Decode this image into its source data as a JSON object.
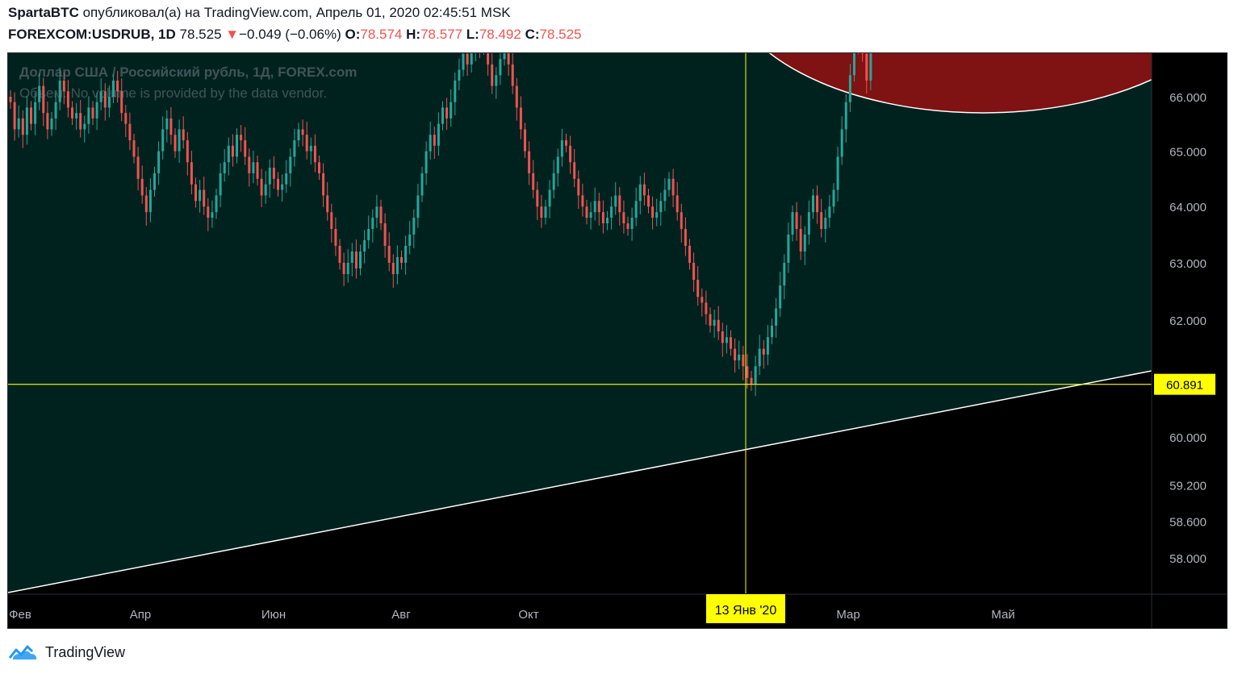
{
  "header": {
    "author": "SpartaBTC",
    "published_text": "опубликовал(а) на TradingView.com, Апрель 01, 2020 02:45:51 MSK",
    "symbol": "FOREXCOM:USDRUB, 1D",
    "last_price": "78.525",
    "change_arrow": "▼",
    "change": "−0.049 (−0.06%)",
    "open_label": "O:",
    "open": "78.574",
    "high_label": "H:",
    "high": "78.577",
    "low_label": "L:",
    "low": "78.492",
    "close_label": "C:",
    "close": "78.525"
  },
  "watermark": {
    "title": "Доллар США / Российский рубль, 1Д, FOREX.com",
    "volume_note": "Объем: No volume is provided by the data vendor."
  },
  "footer": {
    "brand": "TradingView"
  },
  "colors": {
    "up": "#26a69a",
    "down": "#ef5350",
    "zone_fill": "#00221f",
    "circle_fill": "#7f1212",
    "crosshair": "#ffff00",
    "label_bg": "#ffff00",
    "axis_text": "#b2b5be"
  },
  "chart_data": {
    "type": "candlestick",
    "timeframe": "1D",
    "y_axis": {
      "ticks": [
        "66.000",
        "65.000",
        "64.000",
        "63.000",
        "62.000",
        "60.000",
        "59.200",
        "58.600",
        "58.000"
      ],
      "scale": "log"
    },
    "x_axis": {
      "ticks": [
        "Фев",
        "Апр",
        "Июн",
        "Авг",
        "Окт",
        "Мар",
        "Май"
      ]
    },
    "crosshair": {
      "price": "60.891",
      "date": "13 Янв '20"
    },
    "closes": [
      65.9,
      65.4,
      65.6,
      65.3,
      65.8,
      65.5,
      65.9,
      66.2,
      65.7,
      65.4,
      65.6,
      65.9,
      66.3,
      66.1,
      65.8,
      65.6,
      65.7,
      65.4,
      65.5,
      65.8,
      65.6,
      65.9,
      66.1,
      65.8,
      66.0,
      66.3,
      66.1,
      65.7,
      65.5,
      65.2,
      64.9,
      64.5,
      64.2,
      63.9,
      64.3,
      64.6,
      65.0,
      65.4,
      65.6,
      65.3,
      65.0,
      65.4,
      65.2,
      64.8,
      64.4,
      64.1,
      64.3,
      64.0,
      63.8,
      63.9,
      64.2,
      64.6,
      64.8,
      65.1,
      64.9,
      65.3,
      65.2,
      64.9,
      64.6,
      64.8,
      64.5,
      64.2,
      64.4,
      64.7,
      64.5,
      64.3,
      64.4,
      64.6,
      64.9,
      65.2,
      65.4,
      65.3,
      65.0,
      65.1,
      64.8,
      64.6,
      64.2,
      63.9,
      63.6,
      63.3,
      63.0,
      62.8,
      63.0,
      63.2,
      62.9,
      63.2,
      63.4,
      63.6,
      63.8,
      64.0,
      63.7,
      63.3,
      63.0,
      62.8,
      63.1,
      63.0,
      63.3,
      63.5,
      63.8,
      64.2,
      64.6,
      65.0,
      65.3,
      65.1,
      65.5,
      65.8,
      65.6,
      65.9,
      66.3,
      66.5,
      66.8,
      66.6,
      66.9,
      67.2,
      66.9,
      67.0,
      66.6,
      66.2,
      66.4,
      66.7,
      66.9,
      66.6,
      66.2,
      65.8,
      65.4,
      65.0,
      64.6,
      64.3,
      64.0,
      63.8,
      64.0,
      64.3,
      64.6,
      64.9,
      65.2,
      65.1,
      64.8,
      64.5,
      64.2,
      64.0,
      63.8,
      63.9,
      64.1,
      63.9,
      63.7,
      63.8,
      64.0,
      64.2,
      63.9,
      63.7,
      63.6,
      63.8,
      64.1,
      64.4,
      64.2,
      64.0,
      63.8,
      63.9,
      64.1,
      64.3,
      64.5,
      64.2,
      63.9,
      63.6,
      63.3,
      63.0,
      62.7,
      62.4,
      62.3,
      62.1,
      61.9,
      62.0,
      61.8,
      61.6,
      61.7,
      61.5,
      61.3,
      61.4,
      61.2,
      61.0,
      60.9,
      61.2,
      61.5,
      61.4,
      61.7,
      61.9,
      62.2,
      62.6,
      63.0,
      63.5,
      63.9,
      63.6,
      63.2,
      63.5,
      63.9,
      64.2,
      63.9,
      63.6,
      63.8,
      64.0,
      64.3,
      64.9,
      65.4,
      65.9,
      66.4,
      67.0,
      67.4,
      66.8,
      66.3,
      67.0
    ]
  }
}
